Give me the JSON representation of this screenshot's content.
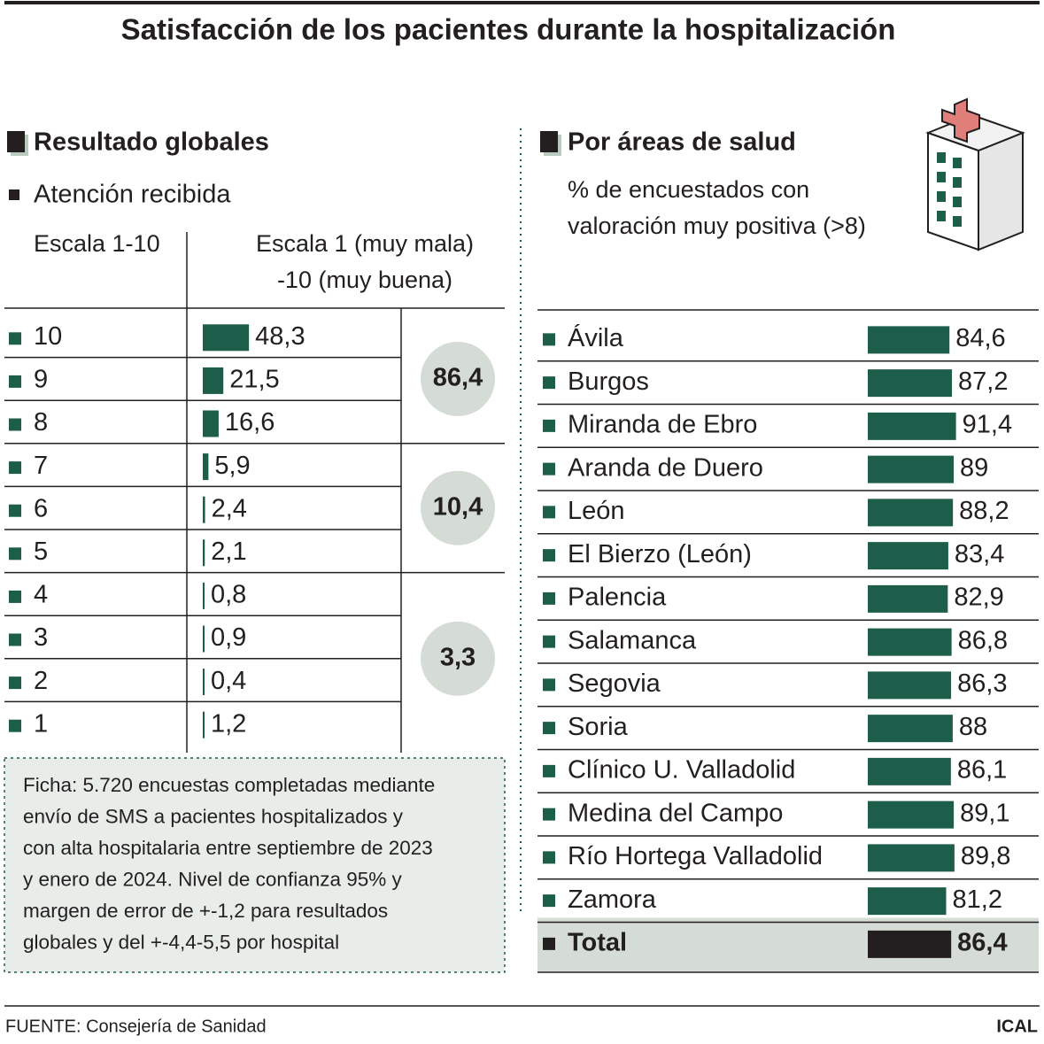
{
  "title": "Satisfacción de los pacientes durante la hospitalización",
  "source": "FUENTE: Consejería de Sanidad",
  "credit": "ICAL",
  "note": [
    "Ficha: 5.720 encuestas completadas mediante",
    "envío de SMS a pacientes hospitalizados y",
    "con alta hospitalaria entre septiembre de 2023",
    "y enero de 2024. Nivel de confianza 95% y",
    "margen de error de +-1,2 para resultados",
    "globales y del +-4,4-5,5 por hospital"
  ],
  "chart_data": [
    {
      "type": "bar",
      "orientation": "horizontal",
      "title": "Resultado globales",
      "subtitle": "Atención recibida",
      "category_header": "Escala 1-10",
      "value_header": [
        "Escala 1 (muy mala)",
        "-10 (muy buena)"
      ],
      "categories": [
        "10",
        "9",
        "8",
        "7",
        "6",
        "5",
        "4",
        "3",
        "2",
        "1"
      ],
      "values": [
        48.3,
        21.5,
        16.6,
        5.9,
        2.4,
        2.1,
        0.8,
        0.9,
        0.4,
        1.2
      ],
      "value_labels": [
        "48,3",
        "21,5",
        "16,6",
        "5,9",
        "2,4",
        "2,1",
        "0,8",
        "0,9",
        "0,4",
        "1,2"
      ],
      "group_values": [
        86.4,
        10.4,
        3.3
      ],
      "group_labels": [
        "86,4",
        "10,4",
        "3,3"
      ],
      "color": "#1d5e4a"
    },
    {
      "type": "bar",
      "orientation": "horizontal",
      "title": "Por áreas de salud",
      "subtitle": [
        "% de encuestados con",
        "valoración muy positiva (>8)"
      ],
      "categories": [
        "Ávila",
        "Burgos",
        "Miranda de Ebro",
        "Aranda de Duero",
        "León",
        "El Bierzo (León)",
        "Palencia",
        "Salamanca",
        "Segovia",
        "Soria",
        "Clínico U. Valladolid",
        "Medina del Campo",
        "Río Hortega Valladolid",
        "Zamora",
        "Total"
      ],
      "values": [
        84.6,
        87.2,
        91.4,
        89,
        88.2,
        83.4,
        82.9,
        86.8,
        86.3,
        88,
        86.1,
        89.1,
        89.8,
        81.2,
        86.4
      ],
      "value_labels": [
        "84,6",
        "87,2",
        "91,4",
        "89",
        "88,2",
        "83,4",
        "82,9",
        "86,8",
        "86,3",
        "88",
        "86,1",
        "89,1",
        "89,8",
        "81,2",
        "86,4"
      ],
      "color": "#1d5e4a",
      "total_color": "#231f20"
    }
  ]
}
